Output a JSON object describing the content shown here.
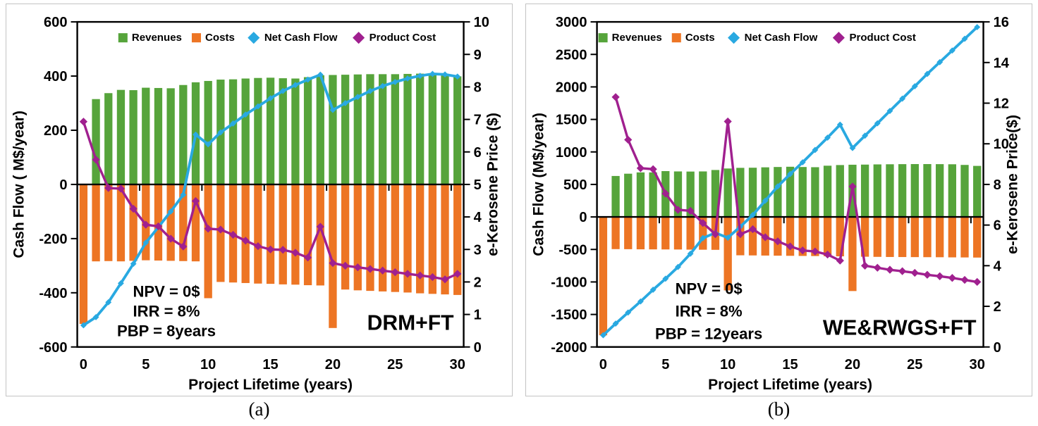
{
  "page": {
    "background": "#ffffff",
    "panel_border": "#c3c3c3"
  },
  "colors": {
    "revenues": "#56A43B",
    "costs": "#ED7524",
    "net_cash_flow": "#29A9E1",
    "product_cost": "#A0208F",
    "axis": "#000000",
    "text": "#000000"
  },
  "legend_labels": [
    "Revenues",
    "Costs",
    "Net Cash Flow",
    "Product Cost"
  ],
  "chart_data": [
    {
      "id": "a",
      "type": "bar",
      "subtype": "combo-bar-line-dual-axis",
      "caption": "(a)",
      "corner_label": "DRM+FT",
      "xlabel": "Project Lifetime (years)",
      "ylabel_left": "Cash Flow ( M$/year)",
      "ylabel_right": "e-Kerosene Price ($)",
      "x_tick_labels": [
        "0",
        "5",
        "10",
        "15",
        "20",
        "25",
        "30"
      ],
      "x_range": [
        0,
        30
      ],
      "yleft_axis": {
        "min": -600,
        "max": 600,
        "step": 200
      },
      "yright_axis": {
        "min": 0,
        "max": 10,
        "step": 1
      },
      "annotations": [
        "NPV = 0$",
        "IRR = 8%",
        "PBP = 8years"
      ],
      "categories": [
        0,
        1,
        2,
        3,
        4,
        5,
        6,
        7,
        8,
        9,
        10,
        11,
        12,
        13,
        14,
        15,
        16,
        17,
        18,
        19,
        20,
        21,
        22,
        23,
        24,
        25,
        26,
        27,
        28,
        29,
        30
      ],
      "series": [
        {
          "name": "Revenues",
          "type": "bar",
          "axis": "left",
          "color_key": "revenues",
          "values": [
            null,
            315,
            337,
            349,
            348,
            357,
            356,
            355,
            367,
            377,
            382,
            387,
            388,
            391,
            393,
            394,
            392,
            391,
            396,
            403,
            404,
            405,
            406,
            407,
            407,
            407,
            408,
            409,
            409,
            407,
            399
          ]
        },
        {
          "name": "Costs",
          "type": "bar",
          "axis": "left",
          "color_key": "costs",
          "values": [
            -515,
            -284,
            -283,
            -284,
            -282,
            -280,
            -281,
            -282,
            -283,
            -284,
            -420,
            -360,
            -362,
            -364,
            -366,
            -367,
            -369,
            -370,
            -372,
            -373,
            -530,
            -388,
            -391,
            -393,
            -395,
            -397,
            -399,
            -402,
            -404,
            -406,
            -408
          ]
        },
        {
          "name": "Net Cash Flow",
          "type": "line",
          "axis": "left",
          "color_key": "net_cash_flow",
          "marker": "diamond",
          "values": [
            -520,
            -490,
            -435,
            -365,
            -293,
            -215,
            -158,
            -100,
            -38,
            184,
            148,
            192,
            225,
            258,
            288,
            318,
            345,
            367,
            387,
            405,
            275,
            300,
            323,
            345,
            363,
            378,
            391,
            401,
            408,
            406,
            398
          ]
        },
        {
          "name": "Product Cost",
          "type": "line",
          "axis": "right",
          "color_key": "product_cost",
          "marker": "diamond",
          "values": [
            6.93,
            5.76,
            4.89,
            4.87,
            4.25,
            3.76,
            3.71,
            3.33,
            3.09,
            4.49,
            3.64,
            3.61,
            3.45,
            3.27,
            3.1,
            3.0,
            2.99,
            2.9,
            2.75,
            3.7,
            2.58,
            2.5,
            2.45,
            2.4,
            2.35,
            2.3,
            2.25,
            2.2,
            2.15,
            2.08,
            2.25
          ]
        }
      ]
    },
    {
      "id": "b",
      "type": "bar",
      "subtype": "combo-bar-line-dual-axis",
      "caption": "(b)",
      "corner_label": "WE&RWGS+FT",
      "xlabel": "Project Lifetime (years)",
      "ylabel_left": "Cash Flow (M$/year)",
      "ylabel_right": "e-Kerosene Price($)",
      "x_tick_labels": [
        "0",
        "5",
        "10",
        "15",
        "20",
        "25",
        "30"
      ],
      "x_range": [
        0,
        30
      ],
      "yleft_axis": {
        "min": -2000,
        "max": 3000,
        "step": 500
      },
      "yright_axis": {
        "min": 0,
        "max": 16,
        "step": 2
      },
      "annotations": [
        "NPV = 0$",
        "IRR = 8%",
        "PBP = 12years"
      ],
      "categories": [
        0,
        1,
        2,
        3,
        4,
        5,
        6,
        7,
        8,
        9,
        10,
        11,
        12,
        13,
        14,
        15,
        16,
        17,
        18,
        19,
        20,
        21,
        22,
        23,
        24,
        25,
        26,
        27,
        28,
        29,
        30
      ],
      "series": [
        {
          "name": "Revenues",
          "type": "bar",
          "axis": "left",
          "color_key": "revenues",
          "values": [
            null,
            630,
            665,
            685,
            685,
            705,
            700,
            698,
            700,
            722,
            745,
            755,
            757,
            763,
            768,
            772,
            768,
            765,
            788,
            798,
            803,
            805,
            808,
            810,
            812,
            813,
            813,
            812,
            810,
            800,
            785
          ]
        },
        {
          "name": "Costs",
          "type": "bar",
          "axis": "left",
          "color_key": "costs",
          "values": [
            -1820,
            -495,
            -496,
            -498,
            -499,
            -500,
            -501,
            -503,
            -504,
            -506,
            -1130,
            -590,
            -592,
            -594,
            -596,
            -598,
            -600,
            -602,
            -604,
            -606,
            -1140,
            -612,
            -614,
            -616,
            -617,
            -618,
            -619,
            -620,
            -622,
            -623,
            -625
          ]
        },
        {
          "name": "Net Cash Flow",
          "type": "line",
          "axis": "left",
          "color_key": "net_cash_flow",
          "marker": "diamond",
          "values": [
            -1820,
            -1640,
            -1470,
            -1300,
            -1120,
            -950,
            -770,
            -565,
            -325,
            -245,
            -320,
            -150,
            30,
            250,
            470,
            660,
            840,
            1030,
            1220,
            1420,
            1060,
            1250,
            1440,
            1630,
            1820,
            2010,
            2200,
            2380,
            2560,
            2740,
            2920
          ]
        },
        {
          "name": "Product Cost",
          "type": "line",
          "axis": "right",
          "color_key": "product_cost",
          "marker": "diamond",
          "values": [
            null,
            12.3,
            10.2,
            8.8,
            8.75,
            7.55,
            6.75,
            6.7,
            6.1,
            5.55,
            11.1,
            5.55,
            5.8,
            5.4,
            5.2,
            4.95,
            4.75,
            4.7,
            4.55,
            4.25,
            7.9,
            4.0,
            3.9,
            3.8,
            3.73,
            3.65,
            3.55,
            3.48,
            3.4,
            3.3,
            3.2
          ]
        }
      ]
    }
  ]
}
